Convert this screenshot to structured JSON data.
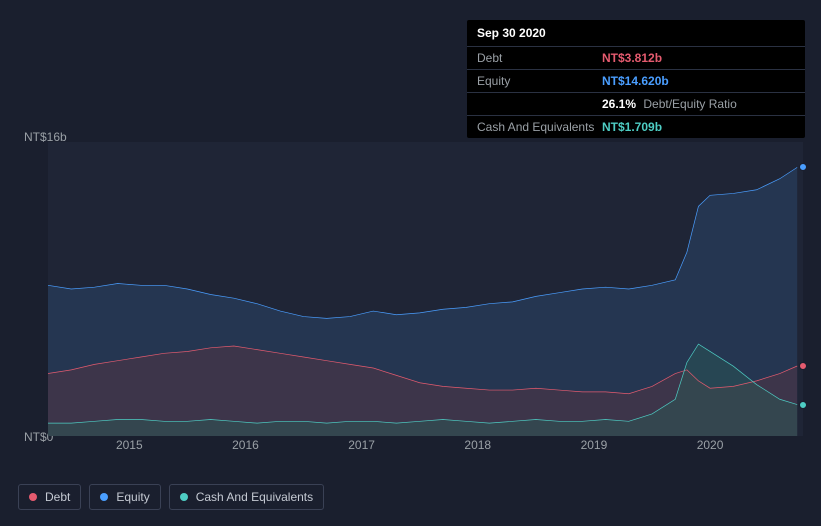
{
  "info_panel": {
    "date": "Sep 30 2020",
    "rows": [
      {
        "label": "Debt",
        "value": "NT$3.812b",
        "class": "debt"
      },
      {
        "label": "Equity",
        "value": "NT$14.620b",
        "class": "equity"
      },
      {
        "label": "",
        "ratio_value": "26.1%",
        "extra": "Debt/Equity Ratio"
      },
      {
        "label": "Cash And Equivalents",
        "value": "NT$1.709b",
        "class": "cash"
      }
    ]
  },
  "chart": {
    "type": "area",
    "background_color": "#1f2536",
    "grid_color": "#3a4155",
    "y_axis": {
      "min": 0,
      "max": 16,
      "labels": [
        {
          "text": "NT$16b",
          "value": 16
        },
        {
          "text": "NT$0",
          "value": 0
        }
      ]
    },
    "x_axis": {
      "min": 2014.3,
      "max": 2020.8,
      "labels": [
        {
          "text": "2015",
          "value": 2015
        },
        {
          "text": "2016",
          "value": 2016
        },
        {
          "text": "2017",
          "value": 2017
        },
        {
          "text": "2018",
          "value": 2018
        },
        {
          "text": "2019",
          "value": 2019
        },
        {
          "text": "2020",
          "value": 2020
        }
      ]
    },
    "series": [
      {
        "name": "Equity",
        "stroke": "#4a9eff",
        "fill": "#2a4668",
        "fill_opacity": 0.55,
        "line_width": 2,
        "data": [
          [
            2014.3,
            8.2
          ],
          [
            2014.5,
            8.0
          ],
          [
            2014.7,
            8.1
          ],
          [
            2014.9,
            8.3
          ],
          [
            2015.1,
            8.2
          ],
          [
            2015.3,
            8.2
          ],
          [
            2015.5,
            8.0
          ],
          [
            2015.7,
            7.7
          ],
          [
            2015.9,
            7.5
          ],
          [
            2016.1,
            7.2
          ],
          [
            2016.3,
            6.8
          ],
          [
            2016.5,
            6.5
          ],
          [
            2016.7,
            6.4
          ],
          [
            2016.9,
            6.5
          ],
          [
            2017.1,
            6.8
          ],
          [
            2017.3,
            6.6
          ],
          [
            2017.5,
            6.7
          ],
          [
            2017.7,
            6.9
          ],
          [
            2017.9,
            7.0
          ],
          [
            2018.1,
            7.2
          ],
          [
            2018.3,
            7.3
          ],
          [
            2018.5,
            7.6
          ],
          [
            2018.7,
            7.8
          ],
          [
            2018.9,
            8.0
          ],
          [
            2019.1,
            8.1
          ],
          [
            2019.3,
            8.0
          ],
          [
            2019.5,
            8.2
          ],
          [
            2019.7,
            8.5
          ],
          [
            2019.8,
            10.0
          ],
          [
            2019.9,
            12.5
          ],
          [
            2020.0,
            13.1
          ],
          [
            2020.2,
            13.2
          ],
          [
            2020.4,
            13.4
          ],
          [
            2020.6,
            14.0
          ],
          [
            2020.75,
            14.62
          ]
        ]
      },
      {
        "name": "Debt",
        "stroke": "#e55b6f",
        "fill": "#5a3642",
        "fill_opacity": 0.45,
        "line_width": 2,
        "data": [
          [
            2014.3,
            3.4
          ],
          [
            2014.5,
            3.6
          ],
          [
            2014.7,
            3.9
          ],
          [
            2014.9,
            4.1
          ],
          [
            2015.1,
            4.3
          ],
          [
            2015.3,
            4.5
          ],
          [
            2015.5,
            4.6
          ],
          [
            2015.7,
            4.8
          ],
          [
            2015.9,
            4.9
          ],
          [
            2016.1,
            4.7
          ],
          [
            2016.3,
            4.5
          ],
          [
            2016.5,
            4.3
          ],
          [
            2016.7,
            4.1
          ],
          [
            2016.9,
            3.9
          ],
          [
            2017.1,
            3.7
          ],
          [
            2017.3,
            3.3
          ],
          [
            2017.5,
            2.9
          ],
          [
            2017.7,
            2.7
          ],
          [
            2017.9,
            2.6
          ],
          [
            2018.1,
            2.5
          ],
          [
            2018.3,
            2.5
          ],
          [
            2018.5,
            2.6
          ],
          [
            2018.7,
            2.5
          ],
          [
            2018.9,
            2.4
          ],
          [
            2019.1,
            2.4
          ],
          [
            2019.3,
            2.3
          ],
          [
            2019.5,
            2.7
          ],
          [
            2019.7,
            3.4
          ],
          [
            2019.8,
            3.6
          ],
          [
            2019.9,
            3.0
          ],
          [
            2020.0,
            2.6
          ],
          [
            2020.2,
            2.7
          ],
          [
            2020.4,
            3.0
          ],
          [
            2020.6,
            3.4
          ],
          [
            2020.75,
            3.81
          ]
        ]
      },
      {
        "name": "Cash And Equivalents",
        "stroke": "#4ecdc4",
        "fill": "#2a5a56",
        "fill_opacity": 0.45,
        "line_width": 2,
        "data": [
          [
            2014.3,
            0.7
          ],
          [
            2014.5,
            0.7
          ],
          [
            2014.7,
            0.8
          ],
          [
            2014.9,
            0.9
          ],
          [
            2015.1,
            0.9
          ],
          [
            2015.3,
            0.8
          ],
          [
            2015.5,
            0.8
          ],
          [
            2015.7,
            0.9
          ],
          [
            2015.9,
            0.8
          ],
          [
            2016.1,
            0.7
          ],
          [
            2016.3,
            0.8
          ],
          [
            2016.5,
            0.8
          ],
          [
            2016.7,
            0.7
          ],
          [
            2016.9,
            0.8
          ],
          [
            2017.1,
            0.8
          ],
          [
            2017.3,
            0.7
          ],
          [
            2017.5,
            0.8
          ],
          [
            2017.7,
            0.9
          ],
          [
            2017.9,
            0.8
          ],
          [
            2018.1,
            0.7
          ],
          [
            2018.3,
            0.8
          ],
          [
            2018.5,
            0.9
          ],
          [
            2018.7,
            0.8
          ],
          [
            2018.9,
            0.8
          ],
          [
            2019.1,
            0.9
          ],
          [
            2019.3,
            0.8
          ],
          [
            2019.5,
            1.2
          ],
          [
            2019.7,
            2.0
          ],
          [
            2019.8,
            4.0
          ],
          [
            2019.9,
            5.0
          ],
          [
            2020.0,
            4.6
          ],
          [
            2020.2,
            3.8
          ],
          [
            2020.4,
            2.8
          ],
          [
            2020.6,
            2.0
          ],
          [
            2020.75,
            1.71
          ]
        ]
      }
    ],
    "end_markers": [
      {
        "series": "Equity",
        "color": "#4a9eff",
        "x": 2020.8,
        "y": 14.62
      },
      {
        "series": "Debt",
        "color": "#e55b6f",
        "x": 2020.8,
        "y": 3.81
      },
      {
        "series": "Cash And Equivalents",
        "color": "#4ecdc4",
        "x": 2020.8,
        "y": 1.71
      }
    ]
  },
  "legend": [
    {
      "label": "Debt",
      "color": "#e55b6f"
    },
    {
      "label": "Equity",
      "color": "#4a9eff"
    },
    {
      "label": "Cash And Equivalents",
      "color": "#4ecdc4"
    }
  ]
}
